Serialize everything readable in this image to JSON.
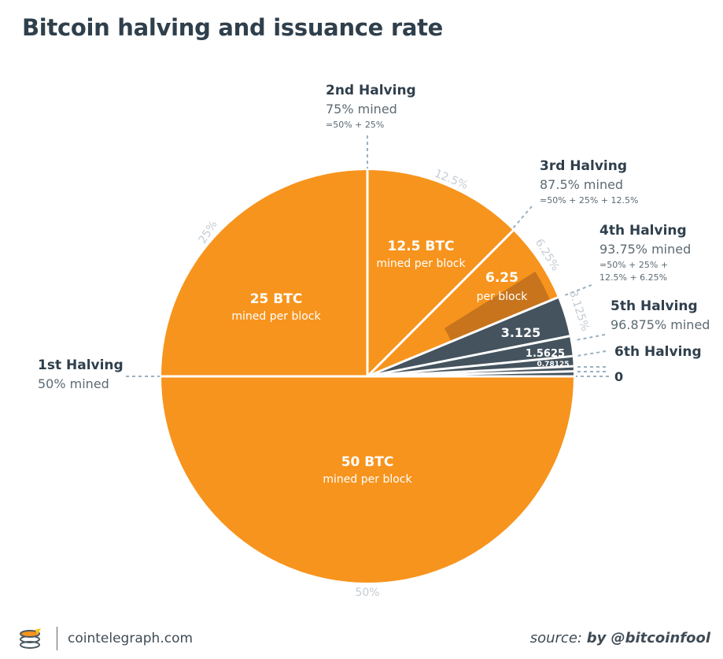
{
  "chart_data": {
    "type": "pie",
    "title": "Bitcoin halving and issuance rate",
    "colors": {
      "orange": "#f7941d",
      "dark_orange": "#c8741c",
      "slate": "#44535e",
      "label_gray": "#c5ccd2",
      "label_text": "#2f3f4c",
      "sub_text": "#5d6a73",
      "leader": "#9ab0c0"
    },
    "slices": [
      {
        "value": 50,
        "share_label": "50%",
        "reward": "50 BTC",
        "reward_sub": "mined per block",
        "fill": "orange"
      },
      {
        "value": 25,
        "share_label": "25%",
        "reward": "25 BTC",
        "reward_sub": "mined per block",
        "fill": "orange"
      },
      {
        "value": 12.5,
        "share_label": "12.5%",
        "reward": "12.5 BTC",
        "reward_sub": "mined per block",
        "fill": "orange"
      },
      {
        "value": 6.25,
        "share_label": "6.25%",
        "reward": "6.25",
        "reward_sub": "per block",
        "fill": "orange",
        "inner_fill": "dark_orange"
      },
      {
        "value": 3.125,
        "share_label": "3.125%",
        "reward": "3.125",
        "reward_sub": "",
        "fill": "slate"
      },
      {
        "value": 1.5625,
        "share_label": "",
        "reward": "1.5625",
        "reward_sub": "",
        "fill": "slate"
      },
      {
        "value": 0.78125,
        "share_label": "",
        "reward": "0.78125",
        "reward_sub": "",
        "fill": "slate"
      },
      {
        "value": 0.390625,
        "share_label": "",
        "reward": "",
        "reward_sub": "",
        "fill": "slate"
      },
      {
        "value": 0.390625,
        "share_label": "",
        "reward": "",
        "reward_sub": "",
        "fill": "slate"
      }
    ],
    "halvings": [
      {
        "title": "1st Halving",
        "mined": "50% mined",
        "note": ""
      },
      {
        "title": "2nd Halving",
        "mined": "75% mined",
        "note": "=50% + 25%"
      },
      {
        "title": "3rd Halving",
        "mined": "87.5% mined",
        "note": "=50% + 25% + 12.5%"
      },
      {
        "title": "4th Halving",
        "mined": "93.75% mined",
        "note": "=50% + 25% +",
        "note2": "12.5% + 6.25%"
      },
      {
        "title": "5th Halving",
        "mined": "96.875% mined",
        "note": ""
      },
      {
        "title": "6th Halving",
        "mined": "",
        "note": ""
      }
    ],
    "end_label": "0"
  },
  "footer": {
    "site": "cointelegraph.com",
    "source_label": "source:",
    "source_by": "by @bitcoinfool"
  }
}
